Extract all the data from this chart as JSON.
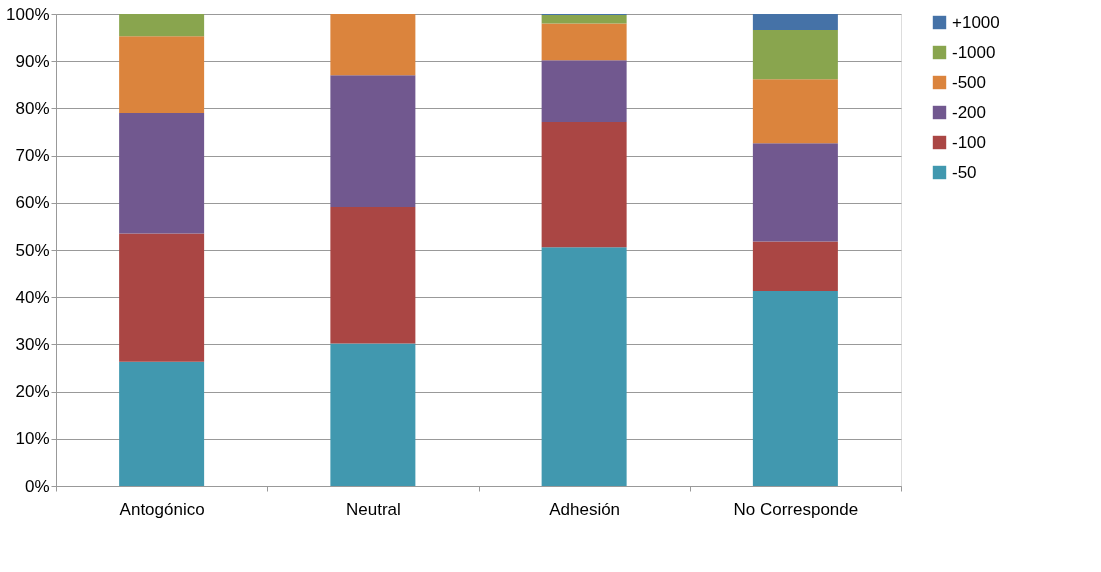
{
  "chart_data": {
    "type": "bar",
    "stacked": true,
    "categories": [
      "Antogónico",
      "Neutral",
      "Adhesión",
      "No Corresponde"
    ],
    "series": [
      {
        "name": "-50",
        "color": "#4198af",
        "values": [
          26.3,
          30.2,
          50.6,
          41.3
        ]
      },
      {
        "name": "-100",
        "color": "#aa4644",
        "values": [
          27.2,
          28.9,
          26.5,
          10.5
        ]
      },
      {
        "name": "-200",
        "color": "#71588f",
        "values": [
          25.5,
          27.9,
          13.1,
          20.8
        ]
      },
      {
        "name": "-500",
        "color": "#db843d",
        "values": [
          16.3,
          13.0,
          7.8,
          13.6
        ]
      },
      {
        "name": "-1000",
        "color": "#89a54e",
        "values": [
          4.7,
          0,
          1.8,
          10.4
        ]
      },
      {
        "name": "+1000",
        "color": "#4572a7",
        "values": [
          0,
          0,
          0.2,
          3.4
        ]
      }
    ],
    "ylim": [
      0,
      100
    ],
    "yticks": [
      {
        "value": 0,
        "label": "0%"
      },
      {
        "value": 10,
        "label": "10%"
      },
      {
        "value": 20,
        "label": "20%"
      },
      {
        "value": 30,
        "label": "30%"
      },
      {
        "value": 40,
        "label": "40%"
      },
      {
        "value": 50,
        "label": "50%"
      },
      {
        "value": 60,
        "label": "60%"
      },
      {
        "value": 70,
        "label": "70%"
      },
      {
        "value": 80,
        "label": "80%"
      },
      {
        "value": 90,
        "label": "90%"
      },
      {
        "value": 100,
        "label": "100%"
      }
    ],
    "grid": "y",
    "legend": "right"
  }
}
